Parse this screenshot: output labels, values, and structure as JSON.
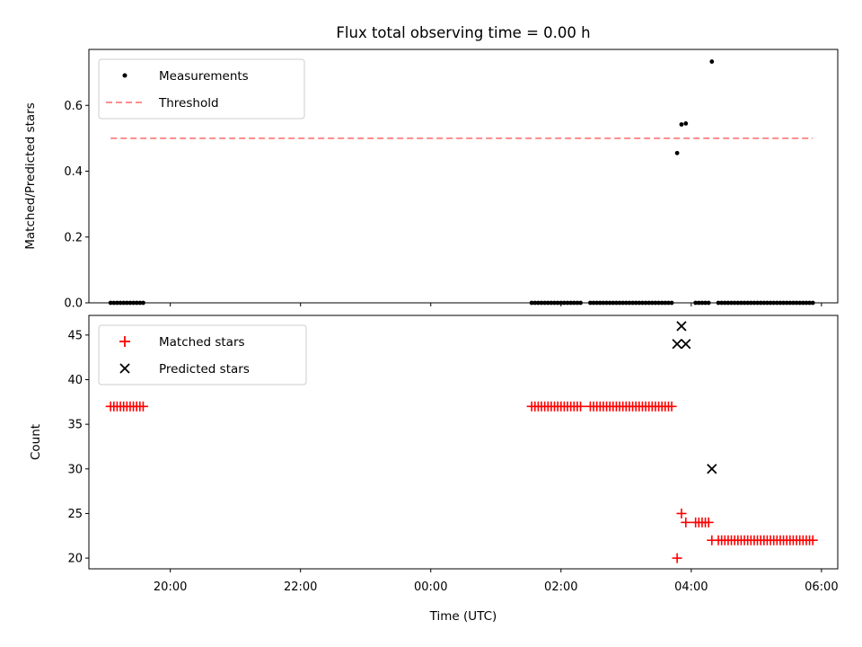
{
  "chart_data": [
    {
      "panel": "top",
      "type": "scatter",
      "title": "Flux total observing time = 0.00 h",
      "xlabel": "",
      "ylabel": "Matched/Predicted stars",
      "ylim": [
        0,
        0.77
      ],
      "xlim": [
        "18:45",
        "06:15"
      ],
      "yticks": [
        0.0,
        0.2,
        0.4,
        0.6
      ],
      "ytick_labels": [
        "0.0",
        "0.2",
        "0.4",
        "0.6"
      ],
      "grid": false,
      "legend_position": "top-left",
      "series": [
        {
          "name": "Measurements",
          "kind": "scatter",
          "marker": "dot",
          "color": "#000000",
          "x": [
            "19:05",
            "19:08",
            "19:11",
            "19:14",
            "19:17",
            "19:20",
            "19:23",
            "19:26",
            "19:29",
            "19:32",
            "19:35",
            "01:33",
            "01:36",
            "01:39",
            "01:42",
            "01:45",
            "01:48",
            "01:51",
            "01:54",
            "01:57",
            "02:00",
            "02:03",
            "02:06",
            "02:09",
            "02:12",
            "02:15",
            "02:18",
            "02:27",
            "02:30",
            "02:33",
            "02:36",
            "02:39",
            "02:42",
            "02:45",
            "02:48",
            "02:51",
            "02:54",
            "02:57",
            "03:00",
            "03:03",
            "03:06",
            "03:09",
            "03:12",
            "03:15",
            "03:18",
            "03:21",
            "03:24",
            "03:27",
            "03:30",
            "03:33",
            "03:36",
            "03:39",
            "03:42",
            "03:47",
            "03:51",
            "03:55",
            "04:04",
            "04:07",
            "04:10",
            "04:13",
            "04:16",
            "04:19",
            "04:25",
            "04:28",
            "04:31",
            "04:34",
            "04:37",
            "04:40",
            "04:43",
            "04:46",
            "04:49",
            "04:52",
            "04:55",
            "04:58",
            "05:01",
            "05:04",
            "05:07",
            "05:10",
            "05:13",
            "05:16",
            "05:19",
            "05:22",
            "05:25",
            "05:28",
            "05:31",
            "05:34",
            "05:37",
            "05:40",
            "05:43",
            "05:46",
            "05:49",
            "05:52"
          ],
          "y": [
            0,
            0,
            0,
            0,
            0,
            0,
            0,
            0,
            0,
            0,
            0,
            0,
            0,
            0,
            0,
            0,
            0,
            0,
            0,
            0,
            0,
            0,
            0,
            0,
            0,
            0,
            0,
            0,
            0,
            0,
            0,
            0,
            0,
            0,
            0,
            0,
            0,
            0,
            0,
            0,
            0,
            0,
            0,
            0,
            0,
            0,
            0,
            0,
            0,
            0,
            0,
            0,
            0,
            0.455,
            0.542,
            0.545,
            0,
            0,
            0,
            0,
            0,
            0.733,
            0,
            0,
            0,
            0,
            0,
            0,
            0,
            0,
            0,
            0,
            0,
            0,
            0,
            0,
            0,
            0,
            0,
            0,
            0,
            0,
            0,
            0,
            0,
            0,
            0,
            0,
            0,
            0,
            0,
            0
          ]
        },
        {
          "name": "Threshold",
          "kind": "line",
          "style": "dashed",
          "color": "#ff7f7f",
          "x": [
            "19:05",
            "05:52"
          ],
          "y": [
            0.5,
            0.5
          ]
        }
      ]
    },
    {
      "panel": "bottom",
      "type": "scatter",
      "title": "",
      "xlabel": "Time (UTC)",
      "ylabel": "Count",
      "ylim": [
        18.8,
        47.2
      ],
      "xlim": [
        "18:45",
        "06:15"
      ],
      "yticks": [
        20,
        25,
        30,
        35,
        40,
        45
      ],
      "ytick_labels": [
        "20",
        "25",
        "30",
        "35",
        "40",
        "45"
      ],
      "xticks": [
        "20:00",
        "22:00",
        "00:00",
        "02:00",
        "04:00",
        "06:00"
      ],
      "xtick_labels": [
        "20:00",
        "22:00",
        "00:00",
        "02:00",
        "04:00",
        "06:00"
      ],
      "grid": false,
      "legend_position": "top-left",
      "series": [
        {
          "name": "Matched stars",
          "kind": "scatter",
          "marker": "plus",
          "color": "#ff0000",
          "x": [
            "19:05",
            "19:08",
            "19:11",
            "19:14",
            "19:17",
            "19:20",
            "19:23",
            "19:26",
            "19:29",
            "19:32",
            "19:35",
            "01:33",
            "01:36",
            "01:39",
            "01:42",
            "01:45",
            "01:48",
            "01:51",
            "01:54",
            "01:57",
            "02:00",
            "02:03",
            "02:06",
            "02:09",
            "02:12",
            "02:15",
            "02:18",
            "02:27",
            "02:30",
            "02:33",
            "02:36",
            "02:39",
            "02:42",
            "02:45",
            "02:48",
            "02:51",
            "02:54",
            "02:57",
            "03:00",
            "03:03",
            "03:06",
            "03:09",
            "03:12",
            "03:15",
            "03:18",
            "03:21",
            "03:24",
            "03:27",
            "03:30",
            "03:33",
            "03:36",
            "03:39",
            "03:42",
            "03:47",
            "03:51",
            "03:55",
            "04:04",
            "04:07",
            "04:10",
            "04:13",
            "04:16",
            "04:19",
            "04:25",
            "04:28",
            "04:31",
            "04:34",
            "04:37",
            "04:40",
            "04:43",
            "04:46",
            "04:49",
            "04:52",
            "04:55",
            "04:58",
            "05:01",
            "05:04",
            "05:07",
            "05:10",
            "05:13",
            "05:16",
            "05:19",
            "05:22",
            "05:25",
            "05:28",
            "05:31",
            "05:34",
            "05:37",
            "05:40",
            "05:43",
            "05:46",
            "05:49",
            "05:52"
          ],
          "y": [
            37,
            37,
            37,
            37,
            37,
            37,
            37,
            37,
            37,
            37,
            37,
            37,
            37,
            37,
            37,
            37,
            37,
            37,
            37,
            37,
            37,
            37,
            37,
            37,
            37,
            37,
            37,
            37,
            37,
            37,
            37,
            37,
            37,
            37,
            37,
            37,
            37,
            37,
            37,
            37,
            37,
            37,
            37,
            37,
            37,
            37,
            37,
            37,
            37,
            37,
            37,
            37,
            37,
            20,
            25,
            24,
            24,
            24,
            24,
            24,
            24,
            22,
            22,
            22,
            22,
            22,
            22,
            22,
            22,
            22,
            22,
            22,
            22,
            22,
            22,
            22,
            22,
            22,
            22,
            22,
            22,
            22,
            22,
            22,
            22,
            22,
            22,
            22,
            22,
            22,
            22,
            22
          ]
        },
        {
          "name": "Predicted stars",
          "kind": "scatter",
          "marker": "x",
          "color": "#000000",
          "x": [
            "03:47",
            "03:51",
            "03:55",
            "04:19"
          ],
          "y": [
            44,
            46,
            44,
            30
          ]
        }
      ]
    }
  ]
}
